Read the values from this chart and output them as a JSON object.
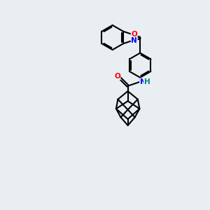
{
  "background_color": "#e8eef2",
  "bond_color": "#000000",
  "atom_colors": {
    "O": "#ff0000",
    "N": "#0000ff",
    "H": "#008080"
  },
  "bond_width": 1.5,
  "figsize": [
    3.0,
    3.0
  ],
  "dpi": 100
}
